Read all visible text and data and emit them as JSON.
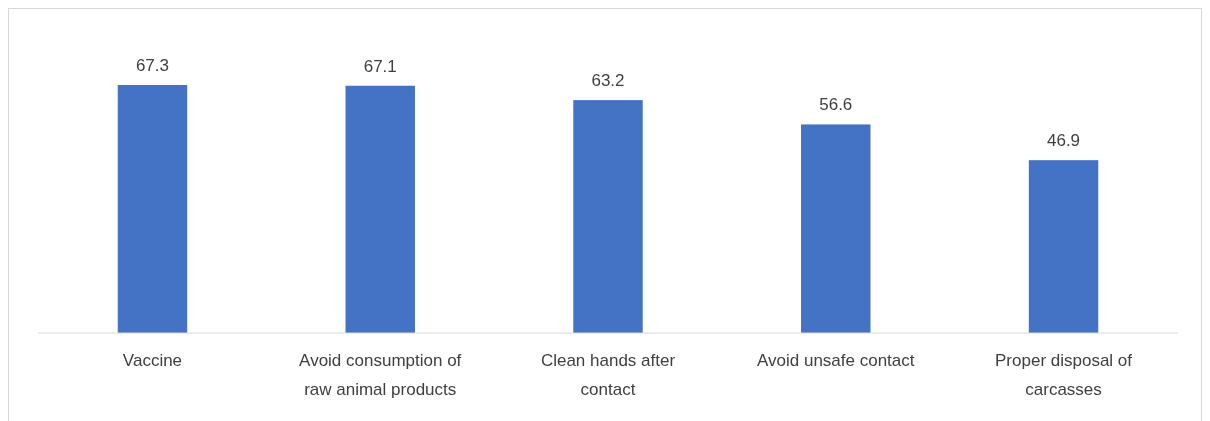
{
  "chart_data": {
    "type": "bar",
    "categories": [
      "Vaccine",
      "Avoid consumption of raw animal products",
      "Clean hands after contact",
      "Avoid unsafe contact",
      "Proper disposal of carcasses"
    ],
    "values": [
      67.3,
      67.1,
      63.2,
      56.6,
      46.9
    ],
    "color": "#4472c4",
    "data_labels": true,
    "tick_labels": "x"
  }
}
